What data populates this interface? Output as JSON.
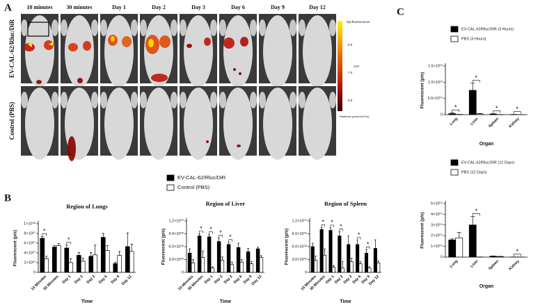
{
  "panel_labels": {
    "a": "A",
    "b": "B",
    "c": "C"
  },
  "imaging": {
    "columns": [
      "10 minutes",
      "30 minutes",
      "Day 1",
      "Day 2",
      "Day 3",
      "Day 6",
      "Day 9",
      "Day 12"
    ],
    "rows": [
      "EV-CAL-62/Rluc/DiR",
      "Control (PBS)"
    ],
    "colorbar": {
      "title": "Epi-fluorescence",
      "ticks": [
        "8.0",
        "7.0",
        "6.0"
      ],
      "scale": "x10⁷",
      "unit": "Radiance (p/sec/cm²/sr)"
    }
  },
  "chart_data": [
    {
      "type": "bar",
      "title": "Region of Lungs",
      "x_label": "Time",
      "y_label": "Fluorescent (p/s)",
      "categories": [
        "10 Minutes",
        "30 Minutes",
        "Day 1",
        "Day 2",
        "Day 3",
        "Day 6",
        "Day 9",
        "Day 12"
      ],
      "series": [
        {
          "name": "EV-CAL-62/Rluc/DiR",
          "color": "#000000",
          "values": [
            70000000,
            52000000,
            50000000,
            35000000,
            33000000,
            72000000,
            18000000,
            53000000
          ],
          "errors": [
            4000000,
            3000000,
            6000000,
            6000000,
            8000000,
            8000000,
            3000000,
            28000000
          ]
        },
        {
          "name": "Control (PBS)",
          "color": "#ffffff",
          "values": [
            28000000,
            55000000,
            20000000,
            23000000,
            36000000,
            45000000,
            35000000,
            43000000
          ],
          "errors": [
            5000000,
            4000000,
            8000000,
            6000000,
            20000000,
            10000000,
            8000000,
            15000000
          ]
        }
      ],
      "ylim": [
        0,
        100000000
      ],
      "yticks": [
        0,
        {
          "value": 20000000,
          "label": "2×10⁰⁷"
        },
        {
          "value": 40000000,
          "label": "4×10⁰⁷"
        },
        {
          "value": 60000000,
          "label": "6×10⁰⁷"
        },
        {
          "value": 80000000,
          "label": "8×10⁰⁷"
        },
        {
          "value": 100000000,
          "label": "1×10⁰⁸"
        }
      ],
      "significance": [
        {
          "label": "*",
          "category": "10 Minutes"
        },
        {
          "label": "*",
          "category": "Day 1"
        }
      ]
    },
    {
      "type": "bar",
      "title": "Region of Liver",
      "x_label": "Time",
      "y_label": "Fluorescent (p/s)",
      "categories": [
        "10 Minutes",
        "30 Minutes",
        "Day 1",
        "Day 2",
        "Day 3",
        "Day 6",
        "Day 9",
        "Day 12"
      ],
      "series": [
        {
          "color": "#000000",
          "values": [
            450000000,
            850000000,
            830000000,
            720000000,
            650000000,
            580000000,
            480000000,
            550000000
          ],
          "errors": [
            100000000,
            50000000,
            50000000,
            80000000,
            50000000,
            100000000,
            80000000,
            40000000
          ]
        },
        {
          "color": "#ffffff",
          "values": [
            220000000,
            350000000,
            100000000,
            280000000,
            180000000,
            240000000,
            200000000,
            350000000
          ],
          "errors": [
            80000000,
            150000000,
            30000000,
            80000000,
            60000000,
            60000000,
            50000000,
            40000000
          ]
        }
      ],
      "ylim": [
        0,
        1200000000
      ],
      "yticks": [
        0,
        {
          "value": 300000000,
          "label": "3.0×10⁰⁸"
        },
        {
          "value": 600000000,
          "label": "6.0×10⁰⁸"
        },
        {
          "value": 900000000,
          "label": "9.0×10⁰⁸"
        },
        {
          "value": 1200000000,
          "label": "1.2×10⁰⁹"
        }
      ],
      "significance": [
        {
          "label": "*",
          "category": "30 Minutes"
        },
        {
          "label": "*",
          "category": "Day 1"
        },
        {
          "label": "*",
          "category": "Day 2"
        },
        {
          "label": "*",
          "category": "Day 3"
        }
      ]
    },
    {
      "type": "bar",
      "title": "Region of Spleen",
      "x_label": "Time",
      "y_label": "Fluorescent (p/s)",
      "categories": [
        "10 Minutes",
        "30 Minutes",
        "Day 1",
        "Day 2",
        "Day 3",
        "Day 6",
        "Day 9",
        "Day 12"
      ],
      "series": [
        {
          "color": "#000000",
          "values": [
            600000000,
            1000000000,
            980000000,
            850000000,
            650000000,
            650000000,
            450000000,
            560000000
          ],
          "errors": [
            80000000,
            50000000,
            60000000,
            100000000,
            200000000,
            100000000,
            80000000,
            200000000
          ]
        },
        {
          "color": "#ffffff",
          "values": [
            280000000,
            400000000,
            120000000,
            100000000,
            250000000,
            200000000,
            100000000,
            220000000
          ],
          "errors": [
            100000000,
            150000000,
            40000000,
            150000000,
            80000000,
            50000000,
            30000000,
            50000000
          ]
        }
      ],
      "ylim": [
        0,
        1200000000
      ],
      "yticks": [
        0,
        {
          "value": 300000000,
          "label": "3.0×10⁰⁸"
        },
        {
          "value": 600000000,
          "label": "6.0×10⁰⁸"
        },
        {
          "value": 900000000,
          "label": "9.0×10⁰⁸"
        },
        {
          "value": 1200000000,
          "label": "1.2×10⁰⁹"
        }
      ],
      "significance": [
        {
          "label": "*",
          "category": "30 Minutes"
        },
        {
          "label": "*",
          "category": "Day 1"
        },
        {
          "label": "*",
          "category": "Day 2"
        },
        {
          "label": "*",
          "category": "Day 6"
        },
        {
          "label": "*",
          "category": "Day 9"
        }
      ]
    },
    {
      "type": "bar",
      "x_label": "Organ",
      "y_label": "Fluorescent (p/s)",
      "categories": [
        "Lung",
        "Liver",
        "Spleen",
        "Kidney"
      ],
      "series": [
        {
          "name": "EV-CAL-62/Rluc/DiR (3 Hours)",
          "color": "#000000",
          "values": [
            300000000,
            7500000000,
            200000000,
            50000000
          ],
          "errors": [
            300000000,
            2200000000,
            100000000,
            20000000
          ]
        },
        {
          "name": "PBS (3 Hours)",
          "color": "#ffffff",
          "values": [
            50000000,
            250000000,
            30000000,
            20000000
          ],
          "errors": [
            30000000,
            100000000,
            20000000,
            10000000
          ]
        }
      ],
      "ylim": [
        0,
        15000000000
      ],
      "yticks": [
        0,
        {
          "value": 5000000000,
          "label": "5.0×10⁰⁹"
        },
        {
          "value": 10000000000,
          "label": "1.0×10¹⁰"
        },
        {
          "value": 15000000000,
          "label": "1.5×10¹⁰"
        }
      ],
      "significance": [
        {
          "label": "*",
          "category": "Lung"
        },
        {
          "label": "*",
          "category": "Liver"
        },
        {
          "label": "*",
          "category": "Spleen"
        },
        {
          "label": "*",
          "category": "Kidney"
        }
      ]
    },
    {
      "type": "bar",
      "x_label": "Organ",
      "y_label": "Fluorescent (p/s)",
      "categories": [
        "Lung",
        "Liver",
        "Spleen",
        "Kidney"
      ],
      "series": [
        {
          "name": "EV-CAL-62/Rluc/DiR (12 Days)",
          "color": "#000000",
          "values": [
            1600000000,
            3000000000,
            80000000,
            10000000
          ],
          "errors": [
            100000000,
            800000000,
            20000000,
            5000000
          ]
        },
        {
          "name": "PBS (12 Days)",
          "color": "#ffffff",
          "values": [
            1800000000,
            10000000,
            50000000,
            5000000
          ],
          "errors": [
            500000000,
            5000000,
            20000000,
            3000000
          ]
        }
      ],
      "ylim": [
        0,
        5000000000
      ],
      "yticks": [
        0,
        {
          "value": 1000000000,
          "label": "1×10⁰⁹"
        },
        {
          "value": 2000000000,
          "label": "2×10⁰⁹"
        },
        {
          "value": 3000000000,
          "label": "3×10⁰⁹"
        },
        {
          "value": 4000000000,
          "label": "4×10⁰⁹"
        },
        {
          "value": 5000000000,
          "label": "5×10⁰⁹"
        }
      ],
      "significance": [
        {
          "label": "*",
          "category": "Liver"
        },
        {
          "label": "*",
          "category": "Kidney"
        }
      ]
    }
  ]
}
